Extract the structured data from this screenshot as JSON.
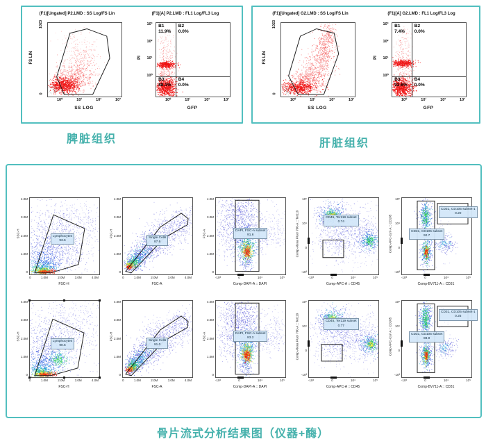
{
  "colors": {
    "panel_border": "#52bfbf",
    "caption_teal": "#45b1ac",
    "event_red": "#ee1111",
    "density_blue": "#2222cc"
  },
  "top_section": {
    "panels": [
      {
        "caption": "脾脏组织",
        "scatter_plot": {
          "title": "(F1)[Ungated] P2.LMD : SS Log/FS Lin",
          "x_label": "SS LOG",
          "y_label": "FS LIN",
          "x_ticks": [
            "10⁰",
            "10¹",
            "10²",
            "10³"
          ],
          "y_ticks": [
            "1023",
            "0"
          ]
        },
        "quadrant_plot": {
          "title": "(F1)[A] P2.LMD : FL1 Log/FL3 Log",
          "x_label": "GFP",
          "y_label": "PI",
          "x_ticks": [
            "10⁰",
            "10¹",
            "10²",
            "10³"
          ],
          "y_ticks": [
            "10³",
            "10²",
            "10¹",
            "10⁰"
          ],
          "quads": [
            {
              "id": "B1",
              "value": "11.9%"
            },
            {
              "id": "B2",
              "value": "0.0%"
            },
            {
              "id": "B3",
              "value": "88.1%"
            },
            {
              "id": "B4",
              "value": "0.0%"
            }
          ]
        }
      },
      {
        "caption": "肝脏组织",
        "scatter_plot": {
          "title": "(F1)[Ungated] G2.LMD : SS Log/FS Lin",
          "x_label": "SS LOG",
          "y_label": "FS LIN",
          "x_ticks": [
            "10⁰",
            "10¹",
            "10²",
            "10³"
          ],
          "y_ticks": [
            "1023",
            "0"
          ]
        },
        "quadrant_plot": {
          "title": "(F1)[A] G2.LMD : FL1 Log/FL3 Log",
          "x_label": "GFP",
          "y_label": "PI",
          "x_ticks": [
            "10⁰",
            "10¹",
            "10²",
            "10³"
          ],
          "y_ticks": [
            "10³",
            "10²",
            "10¹",
            "10⁰"
          ],
          "quads": [
            {
              "id": "B1",
              "value": "7.4%"
            },
            {
              "id": "B2",
              "value": "0.0%"
            },
            {
              "id": "B3",
              "value": "92.6%"
            },
            {
              "id": "B4",
              "value": "0.0%"
            }
          ]
        }
      }
    ]
  },
  "bottom_section": {
    "caption": "骨片流式分析结果图（仪器+酶）",
    "lin_y_ticks": [
      "4.0M",
      "3.0M",
      "2.0M",
      "1.0M",
      "0"
    ],
    "lin_x_ticks": [
      "0",
      "1.0M",
      "2.0M",
      "3.0M",
      "4.0M"
    ],
    "log_x_ticks": [
      "-10³",
      "0",
      "10⁴",
      "10⁵"
    ],
    "log_y_ticks": [
      "10⁵",
      "10⁴",
      "0",
      "-10³"
    ],
    "rows": [
      {
        "plots": [
          {
            "y_label": "SSC-H",
            "x_label": "FSC-H",
            "gates": [
              {
                "label": "Lymphocytes",
                "value": "93.6"
              }
            ]
          },
          {
            "y_label": "FSC-H",
            "x_label": "FSC-A",
            "gates": [
              {
                "label": "Single Cells",
                "value": "87.6"
              }
            ]
          },
          {
            "y_label": "FSC-A",
            "x_label": "Comp-DAPI-A :: DAPI",
            "gates": [
              {
                "label": "DAPI, FSC-A subset",
                "value": "91.6"
              }
            ]
          },
          {
            "y_label": "Comp-Alexa Fluor 700-A :: Ter119",
            "x_label": "Comp-APC-A :: CD45",
            "gates": [
              {
                "label": "CD45, Ter119 subset",
                "value": "0.74"
              }
            ]
          },
          {
            "y_label": "Comp-APC-Cy7-A :: CD105",
            "x_label": "Comp-BV711-A :: CD31",
            "gates": [
              {
                "label": "CD31, CD105 subset",
                "value": "92.7"
              },
              {
                "label": "CD31, CD105 subset-1",
                "value": "0.20"
              }
            ]
          }
        ]
      },
      {
        "plots": [
          {
            "y_label": "SSC-H",
            "x_label": "FSC-H",
            "gates": [
              {
                "label": "Lymphocytes",
                "value": "90.6"
              }
            ]
          },
          {
            "y_label": "FSC-H",
            "x_label": "FSC-A",
            "gates": [
              {
                "label": "Single Cells",
                "value": "91.0"
              }
            ]
          },
          {
            "y_label": "FSC-A",
            "x_label": "Comp-DAPI-A :: DAPI",
            "gates": [
              {
                "label": "DAPI, FSC-A subset",
                "value": "93.2"
              }
            ]
          },
          {
            "y_label": "Comp-Alexa Fluor 700-A :: Ter119",
            "x_label": "Comp-APC-A :: CD45",
            "gates": [
              {
                "label": "CD45, Ter119 subset",
                "value": "0.77"
              }
            ]
          },
          {
            "y_label": "Comp-APC-Cy7-A :: CD105",
            "x_label": "Comp-BV711-A :: CD31",
            "gates": [
              {
                "label": "CD31, CD105 subset",
                "value": "88.9"
              },
              {
                "label": "CD31, CD105 subset-1",
                "value": "0.25"
              }
            ]
          }
        ]
      }
    ]
  },
  "chart_data": [
    {
      "panel": "脾脏组织",
      "type": "scatter",
      "title": "(F1)[Ungated] P2.LMD : SS Log/FS Lin",
      "xlabel": "SS LOG",
      "ylabel": "FS LIN",
      "x_scale": "log10, decades 10⁰–10³",
      "y_scale": "linear 0–1023",
      "series": [
        {
          "name": "events",
          "color": "#ee1111",
          "description": "red event cloud densest at low SS / low FS, polygon gate A around main population"
        }
      ]
    },
    {
      "panel": "脾脏组织",
      "type": "scatter",
      "title": "(F1)[A] P2.LMD : FL1 Log/FL3 Log",
      "xlabel": "GFP",
      "ylabel": "PI",
      "x_scale": "log10 10⁰–10³",
      "y_scale": "log10 10⁰–10³",
      "quadrants": [
        {
          "id": "B1",
          "percent": 11.9
        },
        {
          "id": "B2",
          "percent": 0.0
        },
        {
          "id": "B3",
          "percent": 88.1
        },
        {
          "id": "B4",
          "percent": 0.0
        }
      ],
      "series": [
        {
          "name": "events",
          "color": "#ee1111",
          "description": "GFP-negative column: PI+ band near 10¹ (B1) and dense PI- blob at bottom (B3)"
        }
      ]
    },
    {
      "panel": "肝脏组织",
      "type": "scatter",
      "title": "(F1)[Ungated] G2.LMD : SS Log/FS Lin",
      "xlabel": "SS LOG",
      "ylabel": "FS LIN",
      "x_scale": "log10, decades 10⁰–10³",
      "y_scale": "linear 0–1023",
      "series": [
        {
          "name": "events",
          "color": "#ee1111",
          "description": "red event cloud rising diagonally toward high FS, polygon gate A"
        }
      ]
    },
    {
      "panel": "肝脏组织",
      "type": "scatter",
      "title": "(F1)[A] G2.LMD : FL1 Log/FL3 Log",
      "xlabel": "GFP",
      "ylabel": "PI",
      "x_scale": "log10 10⁰–10³",
      "y_scale": "log10 10⁰–10³",
      "quadrants": [
        {
          "id": "B1",
          "percent": 7.4
        },
        {
          "id": "B2",
          "percent": 0.0
        },
        {
          "id": "B3",
          "percent": 92.6
        },
        {
          "id": "B4",
          "percent": 0.0
        }
      ]
    },
    {
      "panel": "骨片流式分析结果图（仪器+酶）",
      "row": 1,
      "type": "density",
      "plots": [
        {
          "xlabel": "FSC-H",
          "ylabel": "SSC-H",
          "x_range": "0–4.0M linear",
          "y_range": "0–4.0M linear",
          "gates": [
            {
              "name": "Lymphocytes",
              "percent": 93.6
            }
          ]
        },
        {
          "xlabel": "FSC-A",
          "ylabel": "FSC-H",
          "x_range": "0–4.0M linear",
          "y_range": "0–4.0M linear",
          "gates": [
            {
              "name": "Single Cells",
              "percent": 87.6
            }
          ]
        },
        {
          "xlabel": "Comp-DAPI-A :: DAPI",
          "ylabel": "FSC-A",
          "x_range": "biexponential -10³–10⁵",
          "y_range": "0–4.0M linear",
          "gates": [
            {
              "name": "DAPI, FSC-A subset",
              "percent": 91.6
            }
          ]
        },
        {
          "xlabel": "Comp-APC-A :: CD45",
          "ylabel": "Comp-Alexa Fluor 700-A :: Ter119",
          "x_range": "biexponential",
          "y_range": "biexponential",
          "gates": [
            {
              "name": "CD45, Ter119 subset",
              "percent": 0.74
            }
          ]
        },
        {
          "xlabel": "Comp-BV711-A :: CD31",
          "ylabel": "Comp-APC-Cy7-A :: CD105",
          "x_range": "biexponential",
          "y_range": "biexponential",
          "gates": [
            {
              "name": "CD31, CD105 subset",
              "percent": 92.7
            },
            {
              "name": "CD31, CD105 subset-1",
              "percent": 0.2
            }
          ]
        }
      ]
    },
    {
      "panel": "骨片流式分析结果图（仪器+酶）",
      "row": 2,
      "type": "density",
      "plots": [
        {
          "xlabel": "FSC-H",
          "ylabel": "SSC-H",
          "x_range": "0–4.0M linear",
          "y_range": "0–4.0M linear",
          "gates": [
            {
              "name": "Lymphocytes",
              "percent": 90.6
            }
          ]
        },
        {
          "xlabel": "FSC-A",
          "ylabel": "FSC-H",
          "x_range": "0–4.0M linear",
          "y_range": "0–4.0M linear",
          "gates": [
            {
              "name": "Single Cells",
              "percent": 91.0
            }
          ]
        },
        {
          "xlabel": "Comp-DAPI-A :: DAPI",
          "ylabel": "FSC-A",
          "x_range": "biexponential -10³–10⁵",
          "y_range": "0–4.0M linear",
          "gates": [
            {
              "name": "DAPI, FSC-A subset",
              "percent": 93.2
            }
          ]
        },
        {
          "xlabel": "Comp-APC-A :: CD45",
          "ylabel": "Comp-Alexa Fluor 700-A :: Ter119",
          "x_range": "biexponential",
          "y_range": "biexponential",
          "gates": [
            {
              "name": "CD45, Ter119 subset",
              "percent": 0.77
            }
          ]
        },
        {
          "xlabel": "Comp-BV711-A :: CD31",
          "ylabel": "Comp-APC-Cy7-A :: CD105",
          "x_range": "biexponential",
          "y_range": "biexponential",
          "gates": [
            {
              "name": "CD31, CD105 subset",
              "percent": 88.9
            },
            {
              "name": "CD31, CD105 subset-1",
              "percent": 0.25
            }
          ]
        }
      ]
    }
  ]
}
